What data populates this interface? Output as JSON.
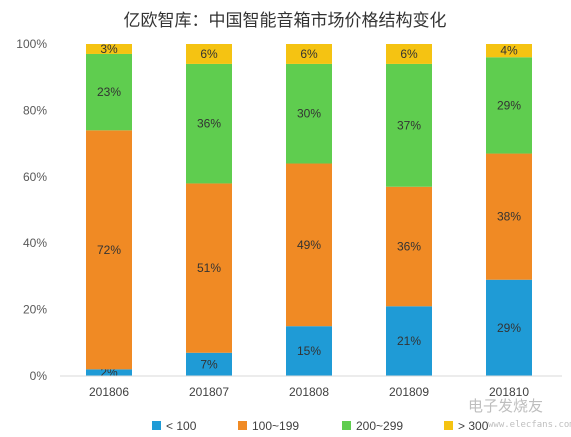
{
  "chart_data": {
    "type": "bar",
    "stacked": true,
    "title": "亿欧智库：中国智能音箱市场价格结构变化",
    "categories": [
      "201806",
      "201807",
      "201808",
      "201809",
      "201810"
    ],
    "series": [
      {
        "name": "< 100",
        "color": "#1f9bd6",
        "values": [
          2,
          7,
          15,
          21,
          29
        ],
        "labels": [
          "2%",
          "7%",
          "15%",
          "21%",
          "29%"
        ]
      },
      {
        "name": "100~199",
        "color": "#f08a24",
        "values": [
          72,
          51,
          49,
          36,
          38
        ],
        "labels": [
          "72%",
          "51%",
          "49%",
          "36%",
          "38%"
        ]
      },
      {
        "name": "200~299",
        "color": "#5fcd4f",
        "values": [
          23,
          36,
          30,
          37,
          29
        ],
        "labels": [
          "23%",
          "36%",
          "30%",
          "37%",
          "29%"
        ]
      },
      {
        "name": "> 300",
        "color": "#f5c312",
        "values": [
          3,
          6,
          6,
          6,
          4
        ],
        "labels": [
          "3%",
          "6%",
          "6%",
          "6%",
          "4%"
        ]
      }
    ],
    "ylim": [
      0,
      100
    ],
    "yticks": [
      "0%",
      "20%",
      "40%",
      "60%",
      "80%",
      "100%"
    ],
    "grid": false,
    "legend_position": "bottom"
  },
  "watermark": {
    "text": "电子发烧友",
    "url": "www.elecfans.com"
  }
}
